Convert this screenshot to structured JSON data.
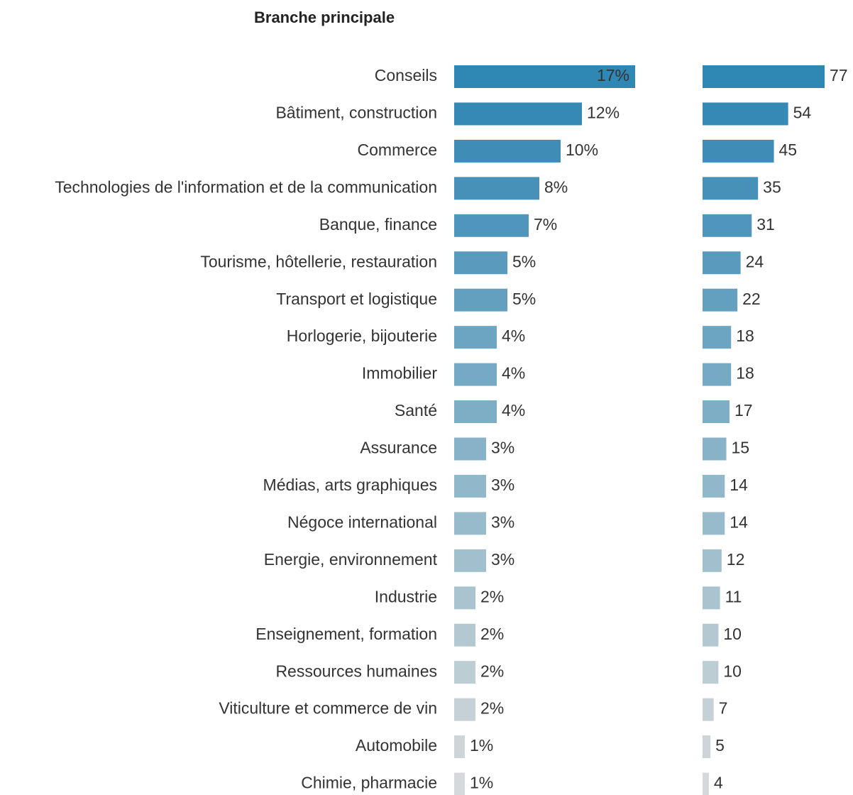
{
  "chart_data": [
    {
      "type": "bar",
      "title": "Branche principale",
      "categories": [
        "Conseils",
        "Bâtiment, construction",
        "Commerce",
        "Technologies de l'information et de la communication",
        "Banque, finance",
        "Tourisme, hôtellerie, restauration",
        "Transport et logistique",
        "Horlogerie, bijouterie",
        "Immobilier",
        "Santé",
        "Assurance",
        "Médias, arts graphiques",
        "Négoce international",
        "Energie, environnement",
        "Industrie",
        "Enseignement, formation",
        "Ressources humaines",
        "Viticulture et commerce de vin",
        "Automobile",
        "Chimie, pharmacie"
      ],
      "values": [
        17,
        12,
        10,
        8,
        7,
        5,
        5,
        4,
        4,
        4,
        3,
        3,
        3,
        3,
        2,
        2,
        2,
        2,
        1,
        1
      ],
      "value_labels": [
        "17%",
        "12%",
        "10%",
        "8%",
        "7%",
        "5%",
        "5%",
        "4%",
        "4%",
        "4%",
        "3%",
        "3%",
        "3%",
        "3%",
        "2%",
        "2%",
        "2%",
        "2%",
        "1%",
        "1%"
      ],
      "colors": [
        "#2f87b4",
        "#3789b5",
        "#3f8db7",
        "#4791b9",
        "#5095bb",
        "#5a9abd",
        "#63a0c0",
        "#6ca5c2",
        "#75a9c4",
        "#7eaec6",
        "#87b2c8",
        "#90b7ca",
        "#98bbcc",
        "#a1bfcd",
        "#aac4cf",
        "#b3c8d1",
        "#bccdd3",
        "#c5d1d6",
        "#cdd5d8",
        "#d5d9db"
      ]
    },
    {
      "type": "bar",
      "values": [
        77,
        54,
        45,
        35,
        31,
        24,
        22,
        18,
        18,
        17,
        15,
        14,
        14,
        12,
        11,
        10,
        10,
        7,
        5,
        4
      ],
      "colors": [
        "#2f87b4",
        "#3789b5",
        "#3f8db7",
        "#4791b9",
        "#5095bb",
        "#5a9abd",
        "#63a0c0",
        "#6ca5c2",
        "#75a9c4",
        "#7eaec6",
        "#87b2c8",
        "#90b7ca",
        "#98bbcc",
        "#a1bfcd",
        "#aac4cf",
        "#b3c8d1",
        "#bccdd3",
        "#c5d1d6",
        "#cdd5d8",
        "#d5d9db"
      ]
    }
  ]
}
